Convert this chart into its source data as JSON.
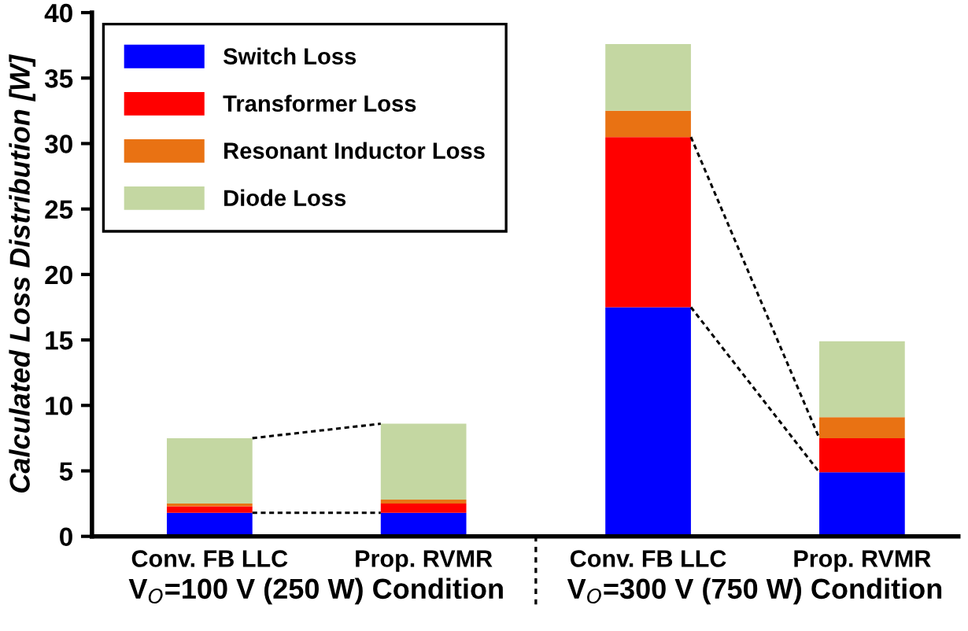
{
  "chart_data": {
    "type": "bar",
    "stacked": true,
    "ylabel": "Calculated Loss Distribution [W]",
    "categories": [
      "Conv. FB LLC",
      "Prop. RVMR",
      "Conv. FB LLC",
      "Prop. RVMR"
    ],
    "series": [
      {
        "name": "Switch Loss",
        "color": "#0000ff",
        "values": [
          1.8,
          1.8,
          17.5,
          4.9
        ]
      },
      {
        "name": "Transformer Loss",
        "color": "#ff0000",
        "values": [
          0.5,
          0.7,
          13.0,
          2.6
        ]
      },
      {
        "name": "Resonant Inductor Loss",
        "color": "#e97213",
        "values": [
          0.2,
          0.3,
          2.0,
          1.6
        ]
      },
      {
        "name": "Diode Loss",
        "color": "#c4d7a2",
        "values": [
          5.0,
          5.8,
          5.1,
          5.8
        ]
      }
    ],
    "ylim": [
      0,
      40
    ],
    "yticks": [
      0,
      5,
      10,
      15,
      20,
      25,
      30,
      35,
      40
    ],
    "grid": false,
    "legend": "top left",
    "annotations": [
      "V$_{O}$=100 V (250 W) Condition",
      "V$_{O}$=300 V (750 W) Condition"
    ]
  }
}
